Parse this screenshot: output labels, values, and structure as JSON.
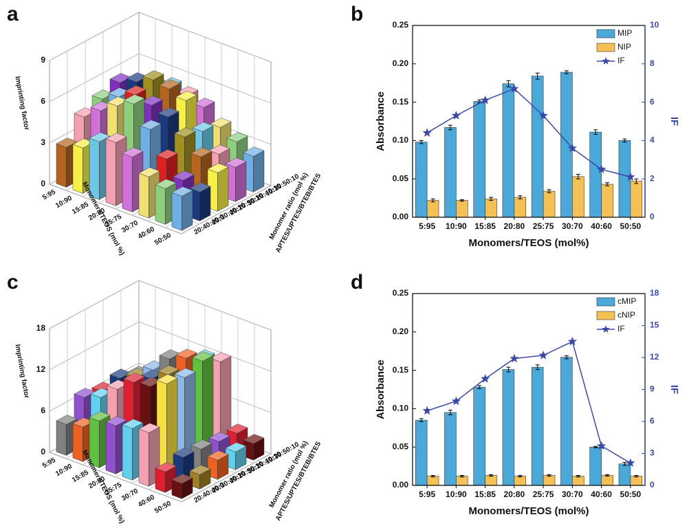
{
  "chart_data": [
    {
      "type": "bar3d",
      "panel_label": "a",
      "z_label": "Imprinting factor",
      "x_label": "Monomers/TEOS (mol %)",
      "y_label": "Monomer ratio (mol %)",
      "y_label_2": "APTES/UPTES/BTEB/BTES",
      "categories": [
        "5:95",
        "10:90",
        "15:85",
        "20:80",
        "25:75",
        "30:70",
        "40:60",
        "50:50"
      ],
      "depth_categories": [
        "20:40:40:0",
        "20:30:40:10",
        "20:20:50:10",
        "30:20:40:10",
        "10:30:50:10"
      ],
      "values": [
        [
          2.9,
          3.3,
          4.2,
          4.6,
          4.0,
          3.0,
          2.6,
          2.5
        ],
        [
          4.4,
          5.3,
          6.1,
          6.7,
          5.3,
          3.6,
          2.5,
          2.1
        ],
        [
          5.0,
          5.6,
          6.2,
          5.9,
          5.5,
          4.5,
          3.5,
          2.8
        ],
        [
          5.5,
          6.0,
          6.6,
          6.4,
          6.0,
          4.2,
          3.0,
          2.5
        ],
        [
          4.5,
          5.0,
          5.4,
          5.2,
          4.8,
          3.8,
          3.2,
          2.6
        ]
      ],
      "zlim": [
        0,
        9
      ],
      "zticks": [
        0,
        3,
        6,
        9
      ],
      "palette": [
        "#b5651d",
        "#f5f043",
        "#6cc7e6",
        "#f4a0b0",
        "#d070d8",
        "#f0e070",
        "#8cd07c",
        "#70aee6",
        "#e02020",
        "#8030c0",
        "#1a3a80",
        "#a09020"
      ]
    },
    {
      "type": "bar",
      "panel_label": "b",
      "x_label": "Monomers/TEOS (mol%)",
      "y_label": "Absorbance",
      "y2_label": "IF",
      "categories": [
        "5:95",
        "10:90",
        "15:85",
        "20:80",
        "25:75",
        "30:70",
        "40:60",
        "50:50"
      ],
      "series": [
        {
          "name": "MIP",
          "color": "#4aa9d8",
          "values": [
            0.098,
            0.117,
            0.151,
            0.174,
            0.184,
            0.189,
            0.111,
            0.1
          ],
          "errors": [
            0.002,
            0.003,
            0.002,
            0.004,
            0.004,
            0.002,
            0.003,
            0.002
          ]
        },
        {
          "name": "NIP",
          "color": "#f6c154",
          "values": [
            0.022,
            0.022,
            0.024,
            0.026,
            0.034,
            0.053,
            0.043,
            0.047
          ],
          "errors": [
            0.002,
            0.001,
            0.002,
            0.002,
            0.002,
            0.003,
            0.002,
            0.003
          ]
        },
        {
          "name": "IF",
          "color": "#3a48a8",
          "type": "line",
          "marker": "star",
          "axis": "y2",
          "values": [
            4.4,
            5.3,
            6.1,
            6.7,
            5.3,
            3.6,
            2.5,
            2.1
          ]
        }
      ],
      "ylim": [
        0,
        0.25
      ],
      "yticks": [
        {
          "value": 0,
          "label": "0.00"
        },
        {
          "value": 0.05,
          "label": "0.05"
        },
        {
          "value": 0.1,
          "label": "0.10"
        },
        {
          "value": 0.15,
          "label": "0.15"
        },
        {
          "value": 0.2,
          "label": "0.20"
        },
        {
          "value": 0.25,
          "label": "0.25"
        }
      ],
      "y2lim": [
        0,
        10
      ],
      "y2ticks": [
        0,
        2,
        4,
        6,
        8,
        10
      ],
      "legend": "upper right"
    },
    {
      "type": "bar3d",
      "panel_label": "c",
      "z_label": "Imprinting factor",
      "x_label": "Monomers/TEOS (mol %)",
      "y_label": "Monomer ratio (mol %)",
      "y_label_2": "APTES/UPTES/BTEB/BTES",
      "categories": [
        "5:95",
        "10:90",
        "15:85",
        "20:80",
        "25:75",
        "30:70",
        "40:60",
        "50:50"
      ],
      "depth_categories": [
        "20:40:40:0",
        "20:30:40:10",
        "20:20:50:10",
        "30:20:40:10",
        "10:30:50:10"
      ],
      "values": [
        [
          4.5,
          5.0,
          6.8,
          7.0,
          7.5,
          7.8,
          3.0,
          2.2
        ],
        [
          7.0,
          7.9,
          10.0,
          11.9,
          12.2,
          13.5,
          3.7,
          2.1
        ],
        [
          6.5,
          7.5,
          9.5,
          11.0,
          12.5,
          13.0,
          3.5,
          2.8
        ],
        [
          7.0,
          8.0,
          10.0,
          12.5,
          13.5,
          14.0,
          3.2,
          2.6
        ],
        [
          6.0,
          7.0,
          9.0,
          11.0,
          12.0,
          12.5,
          3.0,
          2.4
        ]
      ],
      "zlim": [
        0,
        18
      ],
      "zticks": [
        0,
        6,
        12,
        18
      ],
      "palette": [
        "#808080",
        "#f06020",
        "#60c040",
        "#9050d0",
        "#60d0f0",
        "#f4a0b0",
        "#e02030",
        "#6a1010",
        "#f5e040",
        "#1a3a80",
        "#a08020",
        "#8ab8e8"
      ]
    },
    {
      "type": "bar",
      "panel_label": "d",
      "x_label": "Monomers/TEOS (mol%)",
      "y_label": "Absorbance",
      "y2_label": "IF",
      "categories": [
        "5:95",
        "10:90",
        "15:85",
        "20:80",
        "25:75",
        "30:70",
        "40:60",
        "50:50"
      ],
      "series": [
        {
          "name": "cMIP",
          "color": "#4aa9d8",
          "values": [
            0.085,
            0.095,
            0.128,
            0.151,
            0.154,
            0.167,
            0.05,
            0.028
          ],
          "errors": [
            0.002,
            0.003,
            0.002,
            0.003,
            0.003,
            0.002,
            0.001,
            0.002
          ]
        },
        {
          "name": "cNIP",
          "color": "#f6c154",
          "values": [
            0.012,
            0.012,
            0.013,
            0.012,
            0.013,
            0.012,
            0.013,
            0.012
          ],
          "errors": [
            0.001,
            0.001,
            0.001,
            0.001,
            0.001,
            0.001,
            0.001,
            0.001
          ]
        },
        {
          "name": "IF",
          "color": "#3a48a8",
          "type": "line",
          "marker": "star",
          "axis": "y2",
          "values": [
            7.0,
            7.9,
            10.0,
            11.9,
            12.2,
            13.5,
            3.7,
            2.1
          ]
        }
      ],
      "ylim": [
        0,
        0.25
      ],
      "yticks": [
        {
          "value": 0,
          "label": "0.00"
        },
        {
          "value": 0.05,
          "label": "0.05"
        },
        {
          "value": 0.1,
          "label": "0.10"
        },
        {
          "value": 0.15,
          "label": "0.15"
        },
        {
          "value": 0.2,
          "label": "0.20"
        },
        {
          "value": 0.25,
          "label": "0.25"
        }
      ],
      "y2lim": [
        0,
        18
      ],
      "y2ticks": [
        0,
        3,
        6,
        9,
        12,
        15,
        18
      ],
      "legend": "upper right"
    }
  ]
}
